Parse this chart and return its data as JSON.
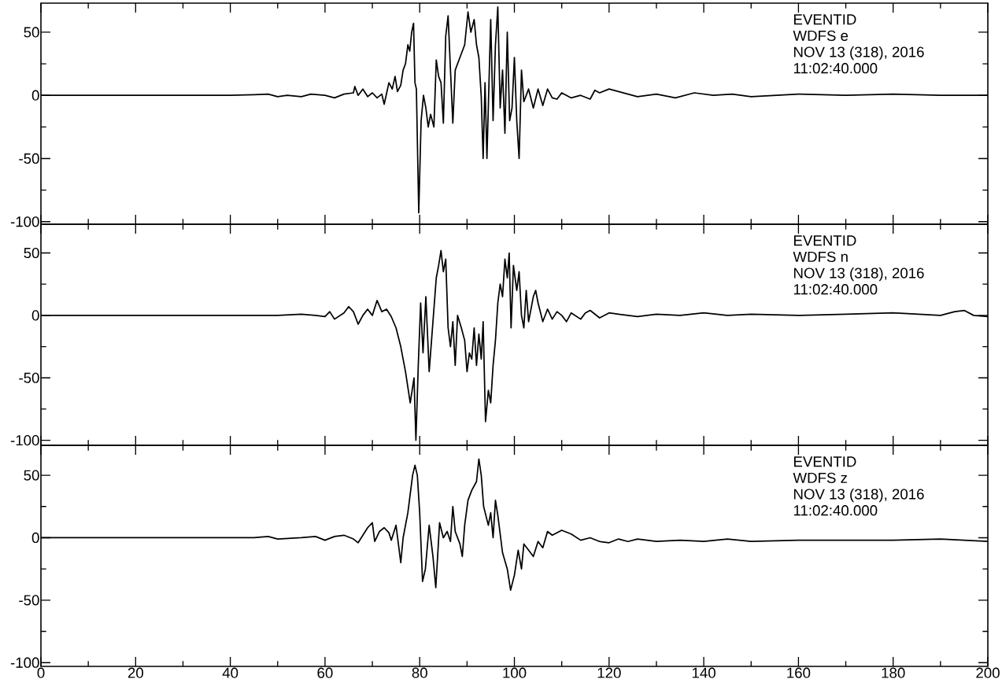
{
  "chart_data": [
    {
      "type": "line",
      "xlim": [
        0,
        200
      ],
      "ylim": [
        -102,
        73
      ],
      "tick_labels": "y",
      "xticks": [
        0,
        {
          "value": 10,
          "label": null
        },
        20,
        {
          "value": 30,
          "label": null
        },
        40,
        {
          "value": 50,
          "label": null
        },
        60,
        {
          "value": 70,
          "label": null
        },
        80,
        {
          "value": 90,
          "label": null
        },
        100,
        {
          "value": 110,
          "label": null
        },
        120,
        {
          "value": 130,
          "label": null
        },
        140,
        {
          "value": 150,
          "label": null
        },
        160,
        {
          "value": 170,
          "label": null
        },
        180,
        {
          "value": 190,
          "label": null
        },
        200
      ],
      "yticks": [
        -100,
        {
          "value": -75,
          "label": null
        },
        -50,
        {
          "value": -25,
          "label": null
        },
        0,
        {
          "value": 25,
          "label": null
        },
        50
      ],
      "annotations": [
        "EVENTID",
        "WDFS e",
        "NOV 13 (318), 2016",
        "11:02:40.000"
      ],
      "series": [
        {
          "color": "#000000",
          "x": [
            0,
            20,
            40,
            45,
            48,
            50,
            52,
            55,
            57,
            60,
            62,
            64,
            66,
            66.3,
            67,
            68,
            69,
            70,
            71,
            72,
            72.5,
            73.5,
            74.2,
            74.8,
            75.3,
            76,
            76.5,
            77,
            77.5,
            77.9,
            78.3,
            78.7,
            79,
            79.3,
            79.8,
            80.3,
            80.8,
            81.3,
            81.8,
            82.3,
            83,
            83.5,
            84,
            84.5,
            85,
            85.5,
            86,
            86.5,
            87,
            87.5,
            88.5,
            89.5,
            90.2,
            90.8,
            91.5,
            92,
            92.5,
            93,
            93.4,
            93.8,
            94.2,
            95,
            95.5,
            96,
            96.5,
            97,
            97.5,
            98,
            98.5,
            99,
            99.5,
            100,
            100.5,
            101,
            101.5,
            102,
            103,
            104,
            105,
            106,
            107,
            108,
            109,
            110,
            112,
            114,
            116,
            117,
            118,
            120,
            122,
            124,
            126,
            130,
            134,
            138,
            142,
            146,
            150,
            155,
            160,
            170,
            180,
            190,
            200
          ],
          "values": [
            0,
            0,
            0,
            0.5,
            1,
            -1,
            0,
            -1,
            1,
            0,
            -2,
            1,
            2,
            7,
            0,
            5,
            -1,
            2,
            -2,
            1,
            -7,
            10,
            5,
            15,
            3,
            8,
            20,
            25,
            40,
            35,
            50,
            57,
            10,
            5,
            -93,
            -20,
            0,
            -10,
            -25,
            -15,
            -25,
            28,
            15,
            10,
            -22,
            47,
            63,
            20,
            -22,
            20,
            30,
            40,
            66,
            50,
            60,
            40,
            30,
            -1,
            -50,
            10,
            -50,
            60,
            -20,
            40,
            70,
            -10,
            20,
            -30,
            50,
            -20,
            -10,
            30,
            -20,
            -50,
            20,
            -5,
            5,
            -10,
            5,
            -8,
            5,
            -2,
            -3,
            2,
            -2,
            0,
            -3,
            4,
            2,
            5,
            3,
            1,
            -1,
            1,
            -2,
            2,
            0,
            1,
            -1,
            0,
            1,
            0,
            1,
            0,
            0
          ]
        }
      ]
    },
    {
      "type": "line",
      "xlim": [
        0,
        200
      ],
      "ylim": [
        -104,
        73
      ],
      "tick_labels": "y",
      "xticks": [
        0,
        {
          "value": 10,
          "label": null
        },
        20,
        {
          "value": 30,
          "label": null
        },
        40,
        {
          "value": 50,
          "label": null
        },
        60,
        {
          "value": 70,
          "label": null
        },
        80,
        {
          "value": 90,
          "label": null
        },
        100,
        {
          "value": 110,
          "label": null
        },
        120,
        {
          "value": 130,
          "label": null
        },
        140,
        {
          "value": 150,
          "label": null
        },
        160,
        {
          "value": 170,
          "label": null
        },
        180,
        {
          "value": 190,
          "label": null
        },
        200
      ],
      "yticks": [
        -100,
        {
          "value": -75,
          "label": null
        },
        -50,
        {
          "value": -25,
          "label": null
        },
        0,
        {
          "value": 25,
          "label": null
        },
        50
      ],
      "annotations": [
        "EVENTID",
        "WDFS n",
        "NOV 13 (318), 2016",
        "11:02:40.000"
      ],
      "series": [
        {
          "color": "#000000",
          "x": [
            0,
            45,
            50,
            55,
            58,
            60,
            61,
            62,
            64,
            65,
            66,
            67,
            68,
            69,
            70,
            71,
            72,
            73,
            74,
            75,
            76,
            77,
            78,
            78.8,
            79.2,
            79.7,
            80.2,
            80.7,
            81.3,
            82,
            82.5,
            83,
            83.5,
            84,
            84.5,
            85,
            85.5,
            86,
            86.5,
            87,
            87.5,
            88,
            88.8,
            89.5,
            90,
            90.5,
            91,
            91.5,
            92,
            92.5,
            93,
            93.4,
            93.9,
            94.5,
            95,
            95.5,
            96,
            96.5,
            97,
            97.5,
            98,
            98.5,
            98.9,
            99.3,
            99.8,
            100.5,
            101,
            101.5,
            102,
            102.5,
            103,
            104,
            104.5,
            105,
            106,
            107,
            108,
            109,
            110,
            111,
            112,
            114,
            115,
            116,
            118,
            120,
            122,
            126,
            130,
            135,
            140,
            145,
            150,
            160,
            170,
            180,
            190,
            193,
            195,
            197,
            200
          ],
          "values": [
            0,
            0,
            0,
            1,
            0,
            -1,
            3,
            -3,
            2,
            7,
            3,
            -7,
            0,
            5,
            0,
            12,
            3,
            5,
            -1,
            -10,
            -25,
            -45,
            -70,
            -50,
            -100,
            -40,
            10,
            -30,
            15,
            -45,
            -20,
            5,
            30,
            40,
            52,
            35,
            45,
            -10,
            -25,
            -5,
            -40,
            0,
            -10,
            -20,
            -45,
            -30,
            -35,
            -10,
            -40,
            -15,
            -35,
            -5,
            -85,
            -60,
            -70,
            -40,
            -20,
            10,
            25,
            15,
            45,
            30,
            50,
            -10,
            40,
            20,
            35,
            0,
            -10,
            20,
            -5,
            15,
            20,
            10,
            -5,
            5,
            -3,
            3,
            0,
            -5,
            2,
            -3,
            2,
            4,
            -2,
            2,
            1,
            -1,
            1,
            0,
            2,
            0,
            1,
            0,
            1,
            2,
            0,
            3,
            4,
            0,
            -1
          ]
        }
      ]
    },
    {
      "type": "line",
      "xlim": [
        0,
        200
      ],
      "ylim": [
        -103,
        74
      ],
      "xticks": [
        0,
        {
          "value": 10,
          "label": null
        },
        20,
        {
          "value": 30,
          "label": null
        },
        40,
        {
          "value": 50,
          "label": null
        },
        60,
        {
          "value": 70,
          "label": null
        },
        80,
        {
          "value": 90,
          "label": null
        },
        100,
        {
          "value": 110,
          "label": null
        },
        120,
        {
          "value": 130,
          "label": null
        },
        140,
        {
          "value": 150,
          "label": null
        },
        160,
        {
          "value": 170,
          "label": null
        },
        180,
        {
          "value": 190,
          "label": null
        },
        200
      ],
      "yticks": [
        -100,
        {
          "value": -75,
          "label": null
        },
        -50,
        {
          "value": -25,
          "label": null
        },
        0,
        {
          "value": 25,
          "label": null
        },
        50
      ],
      "annotations": [
        "EVENTID",
        "WDFS z",
        "NOV 13 (318), 2016",
        "11:02:40.000"
      ],
      "series": [
        {
          "color": "#000000",
          "x": [
            0,
            45,
            48,
            50,
            55,
            58,
            60,
            62,
            64,
            66,
            67,
            68,
            69,
            70,
            70.5,
            71.5,
            72.5,
            73.5,
            74,
            75,
            76,
            76.5,
            77.5,
            78.5,
            79,
            79.5,
            80,
            80.6,
            81.2,
            82,
            82.8,
            83.4,
            84.2,
            85,
            85.8,
            86.5,
            87,
            87.5,
            88.5,
            89,
            89.5,
            90.2,
            91,
            92,
            92.5,
            93,
            93.5,
            94.5,
            95,
            95.5,
            96,
            96.5,
            97.5,
            98.5,
            99.2,
            100,
            100.8,
            101.5,
            102,
            103,
            104,
            105,
            106,
            107,
            108,
            110,
            112,
            114,
            116,
            118,
            120,
            122,
            124,
            126,
            130,
            135,
            140,
            145,
            150,
            160,
            170,
            180,
            190,
            195,
            200
          ],
          "values": [
            0,
            0,
            1,
            -1,
            0,
            1,
            -2,
            1,
            2,
            -1,
            -4,
            2,
            8,
            12,
            -3,
            5,
            8,
            4,
            -2,
            10,
            -20,
            0,
            20,
            50,
            58,
            50,
            20,
            -35,
            -25,
            10,
            -15,
            -40,
            12,
            0,
            5,
            -3,
            25,
            5,
            -5,
            -15,
            10,
            30,
            38,
            45,
            63,
            50,
            25,
            10,
            20,
            0,
            30,
            18,
            -12,
            -25,
            -42,
            -30,
            -10,
            -25,
            -5,
            -10,
            -15,
            -3,
            -8,
            5,
            2,
            6,
            3,
            -2,
            0,
            -3,
            -4,
            -1,
            -3,
            -1,
            -3,
            -2,
            -3,
            -1,
            -3,
            -2,
            -2,
            -2,
            -1,
            -2,
            -3
          ]
        }
      ]
    }
  ]
}
